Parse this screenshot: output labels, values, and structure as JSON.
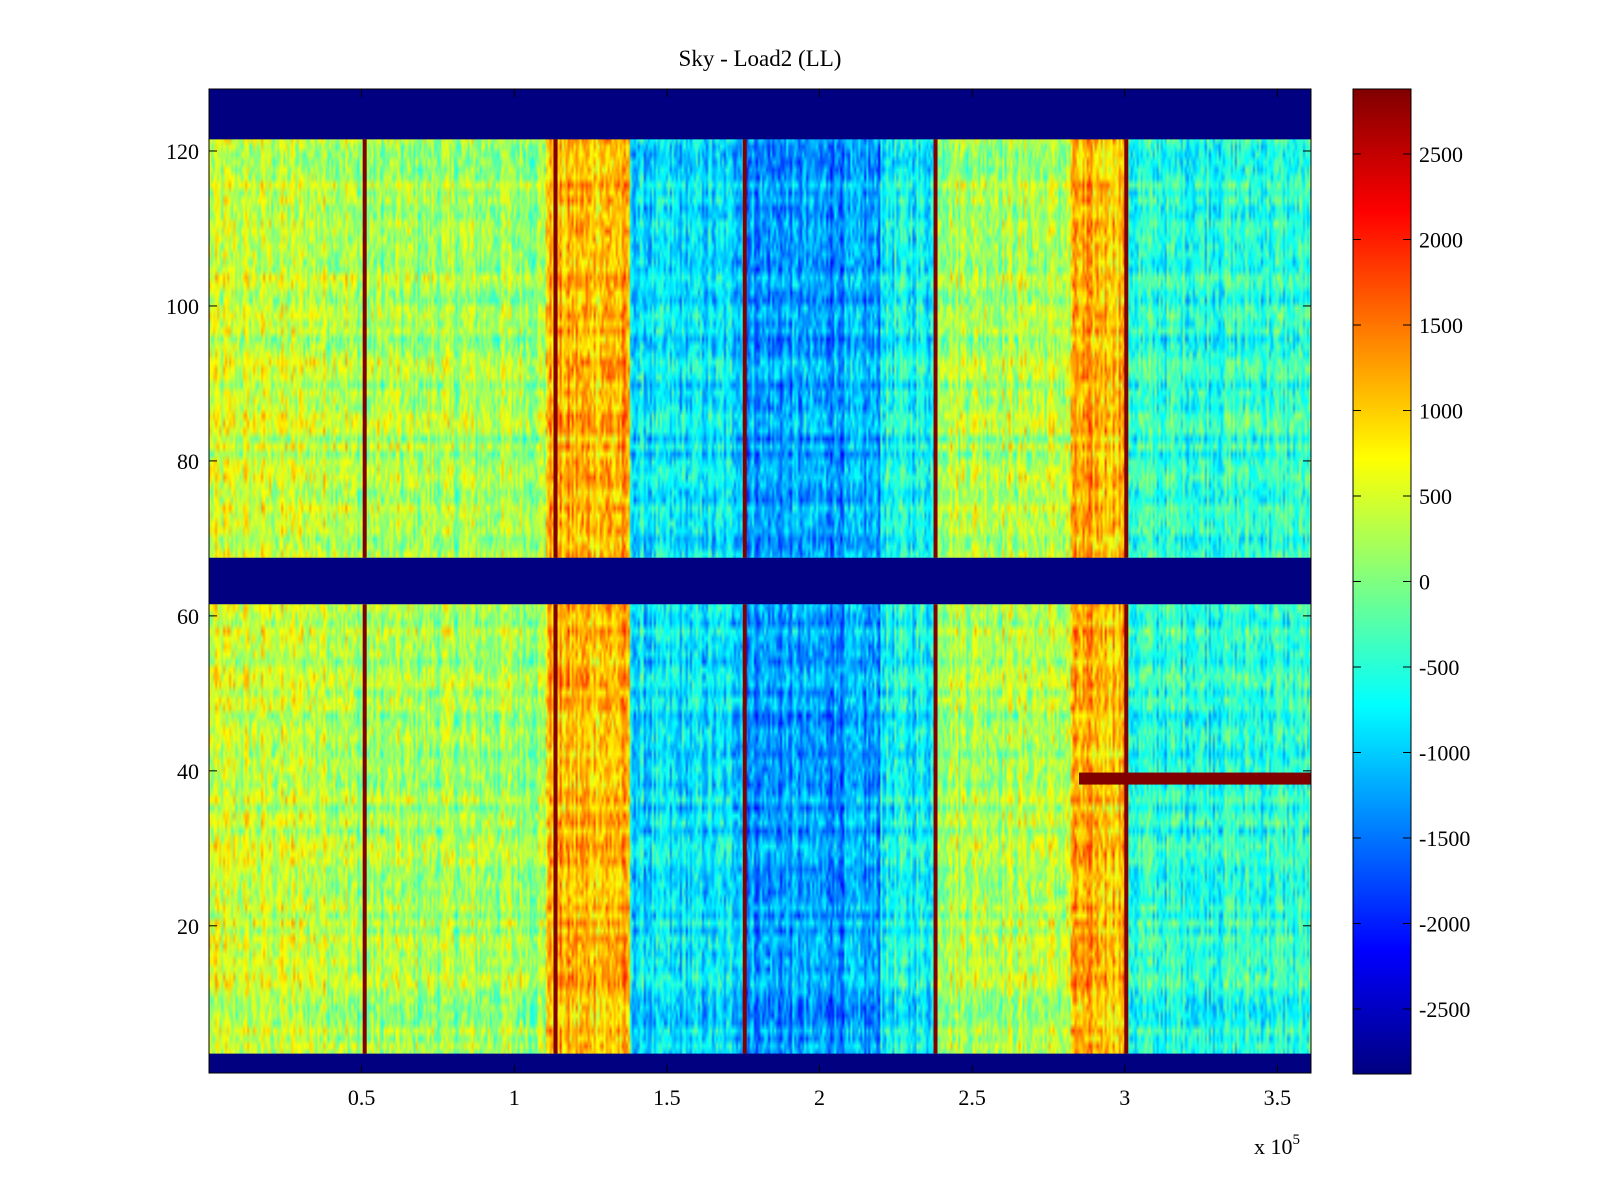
{
  "chart_data": {
    "type": "heatmap",
    "title": "Sky - Load2 (LL)",
    "xlabel": "",
    "ylabel": "",
    "x_multiplier_label": "x 10",
    "x_multiplier_exponent": "5",
    "xlim": [
      0,
      361000
    ],
    "ylim": [
      1,
      128
    ],
    "x_ticks": [
      0.5,
      1,
      1.5,
      2,
      2.5,
      3,
      3.5
    ],
    "x_tick_labels": [
      "0.5",
      "1",
      "1.5",
      "2",
      "2.5",
      "3",
      "3.5"
    ],
    "y_ticks": [
      20,
      40,
      60,
      80,
      100,
      120
    ],
    "y_tick_labels": [
      "20",
      "40",
      "60",
      "80",
      "100",
      "120"
    ],
    "colormap": "jet",
    "clim": [
      -2880,
      2880
    ],
    "colorbar": {
      "placement": "right",
      "ticks": [
        2500,
        2000,
        1500,
        1000,
        500,
        0,
        -500,
        -1000,
        -1500,
        -2000,
        -2500
      ],
      "tick_labels": [
        "2500",
        "2000",
        "1500",
        "1000",
        "500",
        "0",
        "-500",
        "-1000",
        "-1500",
        "-2000",
        "-2500"
      ]
    },
    "masked_rows": [
      [
        1,
        3.5
      ],
      [
        61.5,
        67.5
      ],
      [
        121.5,
        128
      ]
    ],
    "spike_columns": [
      51000,
      113500,
      175500,
      238000,
      300500
    ],
    "hot_row": {
      "y": 39,
      "x_start": 285000,
      "x_end": 361000,
      "value": 2880
    },
    "background_bands": [
      {
        "x_start": 0,
        "x_end": 45000,
        "value": 400
      },
      {
        "x_start": 45000,
        "x_end": 110000,
        "value": 200
      },
      {
        "x_start": 110000,
        "x_end": 138000,
        "value": 1100
      },
      {
        "x_start": 138000,
        "x_end": 175000,
        "value": -900
      },
      {
        "x_start": 175000,
        "x_end": 220000,
        "value": -1300
      },
      {
        "x_start": 220000,
        "x_end": 238000,
        "value": -700
      },
      {
        "x_start": 238000,
        "x_end": 282000,
        "value": 300
      },
      {
        "x_start": 282000,
        "x_end": 300000,
        "value": 1100
      },
      {
        "x_start": 300000,
        "x_end": 361000,
        "value": -500
      }
    ],
    "grid": false,
    "legend": "none"
  }
}
